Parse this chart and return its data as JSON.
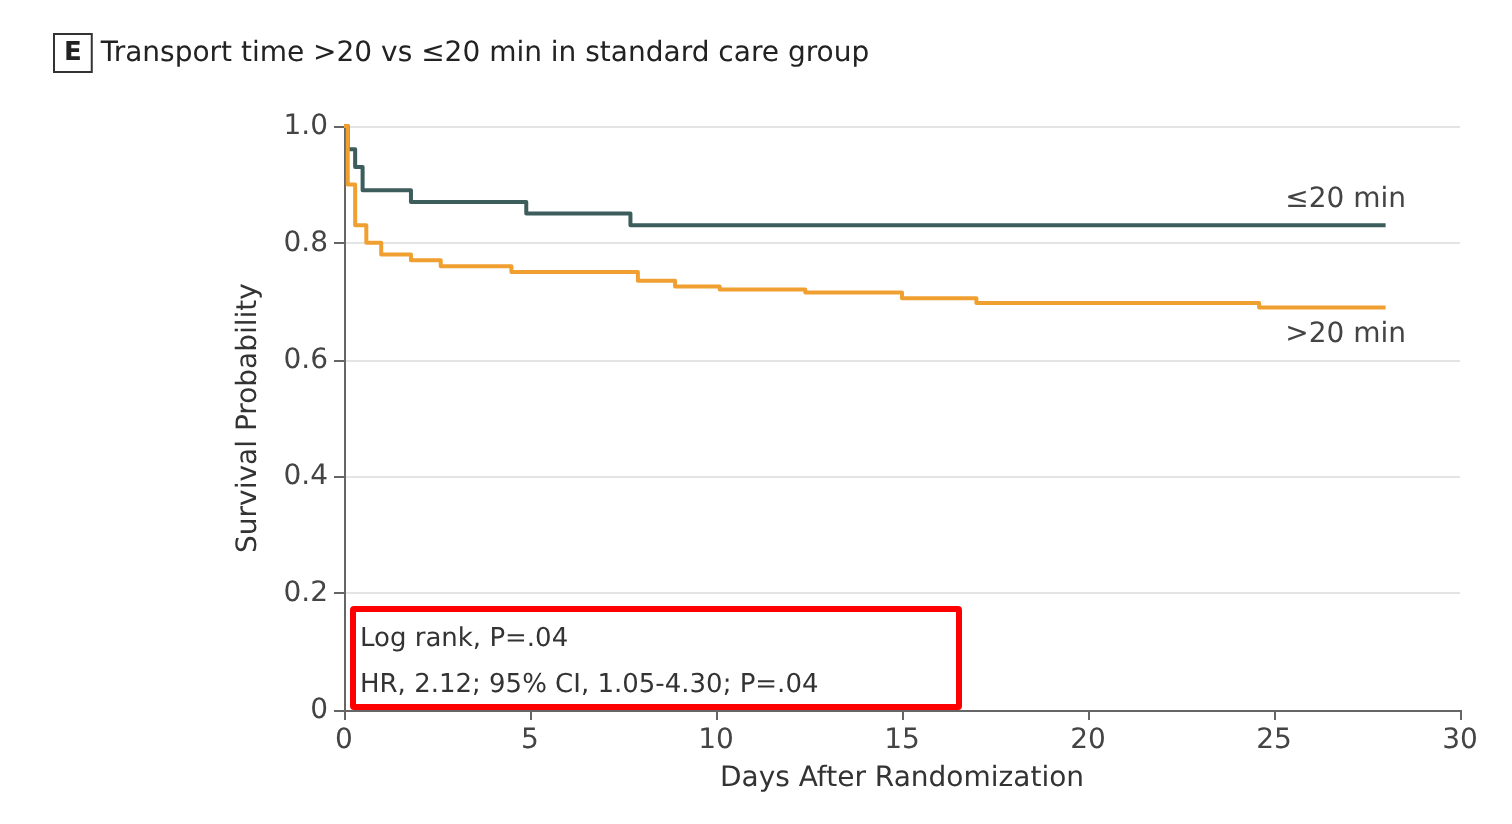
{
  "chart_data": {
    "type": "step",
    "title": "E Transport time >20 vs ≤20 min in standard care group",
    "xlabel": "Days After Randomization",
    "ylabel": "Survival Probability",
    "annotations": [
      "Log rank, P=.04",
      "HR, 2.12; 95% CI, 1.05-4.30; P=.04"
    ],
    "xlim": [
      0,
      30
    ],
    "xticks": [
      0,
      5,
      10,
      15,
      20,
      25,
      30
    ],
    "ylim": [
      0,
      1
    ],
    "yticks": [
      0,
      0.2,
      0.4,
      0.6,
      0.8,
      {
        "value": 1,
        "label": "1.0"
      }
    ],
    "grid": "y",
    "legend": false,
    "series": [
      {
        "name": "≤20 min",
        "color": "#3d5c5c",
        "x": [
          0,
          0.1,
          0.3,
          0.5,
          1.8,
          4.9,
          7.7,
          28
        ],
        "values": [
          1,
          0.96,
          0.93,
          0.89,
          0.87,
          0.85,
          0.83,
          0.83
        ]
      },
      {
        "name": ">20 min",
        "color": "#f0a030",
        "x": [
          0,
          0.1,
          0.3,
          0.6,
          1,
          1.8,
          2.6,
          4.5,
          7.9,
          8.9,
          10.1,
          12.4,
          15,
          17,
          24.6,
          28
        ],
        "values": [
          1,
          0.9,
          0.83,
          0.8,
          0.78,
          0.77,
          0.76,
          0.75,
          0.735,
          0.725,
          0.72,
          0.715,
          0.705,
          0.697,
          0.689,
          0.689
        ]
      }
    ]
  }
}
